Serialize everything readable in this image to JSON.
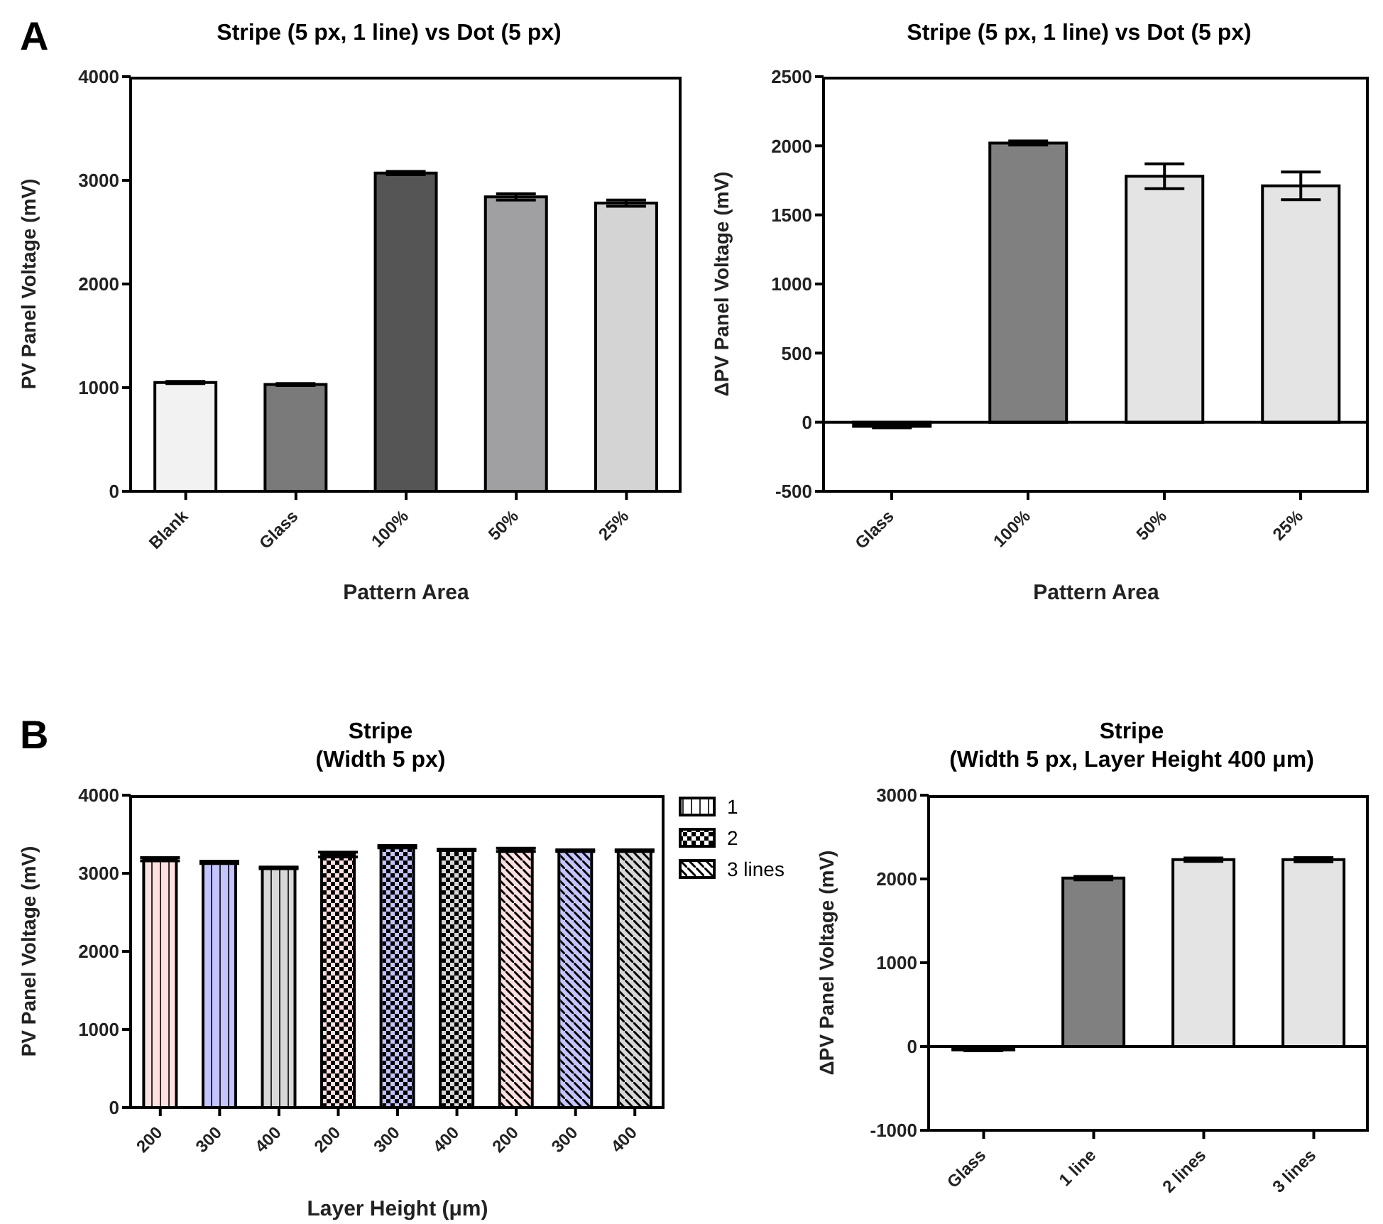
{
  "chart_data": [
    {
      "type": "bar",
      "title": "Stripe (5 px, 1 line) vs Dot (5 px)",
      "annotations": [
        "A"
      ],
      "xlabel": "Pattern Area",
      "ylabel": "PV Panel Voltage (mV)",
      "categories": [
        "Blank",
        "Glass",
        "100%",
        "50%",
        "25%"
      ],
      "values": [
        1050,
        1030,
        3070,
        2840,
        2780
      ],
      "errors": [
        10,
        10,
        15,
        30,
        30
      ],
      "colors": [
        "#f2f2f2",
        "#7a7a7a",
        "#555555",
        "#a0a0a2",
        "#d4d4d4"
      ],
      "ylim": [
        0,
        4000
      ],
      "yticks": [
        0,
        1000,
        2000,
        3000,
        4000
      ],
      "grid": false,
      "legend": false
    },
    {
      "type": "bar",
      "title": "Stripe (5 px, 1 line) vs Dot (5 px)",
      "xlabel": "Pattern Area",
      "ylabel": "ΔPV Panel Voltage (mV)",
      "categories": [
        "Glass",
        "100%",
        "50%",
        "25%"
      ],
      "values": [
        -30,
        2020,
        1780,
        1710
      ],
      "errors": [
        10,
        15,
        90,
        100
      ],
      "colors": [
        "#000000",
        "#808080",
        "#e4e4e4",
        "#e4e4e4"
      ],
      "ylim": [
        -500,
        2500
      ],
      "yticks": [
        -500,
        0,
        500,
        1000,
        1500,
        2000,
        2500
      ],
      "ref_lines": [
        {
          "axis": "y",
          "value": 0
        }
      ],
      "grid": false,
      "legend": false
    },
    {
      "type": "bar",
      "title": "Stripe",
      "subtitle": "(Width 5 px)",
      "annotations": [
        "B"
      ],
      "xlabel": "Layer Height (μm)",
      "ylabel": "PV Panel Voltage (mV)",
      "categories": [
        "200",
        "300",
        "400",
        "200",
        "300",
        "400",
        "200",
        "300",
        "400"
      ],
      "series": [
        {
          "name": "1",
          "color": "#ffffff",
          "colors": [
            "#ffe0e0",
            "#c4c4ff",
            "#d8d8d8",
            null,
            null,
            null,
            null,
            null,
            null
          ],
          "values": [
            3180,
            3140,
            3070,
            null,
            null,
            null,
            null,
            null,
            null
          ],
          "errors": [
            20,
            15,
            10,
            null,
            null,
            null,
            null,
            null,
            null
          ]
        },
        {
          "name": "2",
          "color": "#ffffff",
          "colors": [
            null,
            null,
            null,
            "#ffe0e0",
            "#c4c4ff",
            "#d8d8d8",
            null,
            null,
            null
          ],
          "values": [
            null,
            null,
            null,
            3240,
            3340,
            3300,
            null,
            null,
            null
          ],
          "errors": [
            null,
            null,
            null,
            30,
            15,
            10,
            null,
            null,
            null
          ]
        },
        {
          "name": "3 lines",
          "color": "#ffffff",
          "colors": [
            null,
            null,
            null,
            null,
            null,
            null,
            "#ffe0e0",
            "#c4c4ff",
            "#d8d8d8"
          ],
          "values": [
            null,
            null,
            null,
            null,
            null,
            null,
            3300,
            3290,
            3290
          ],
          "errors": [
            null,
            null,
            null,
            null,
            null,
            null,
            20,
            10,
            10
          ]
        }
      ],
      "ylim": [
        0,
        4000
      ],
      "yticks": [
        0,
        1000,
        2000,
        3000,
        4000
      ],
      "grid": false,
      "legend": "top right"
    },
    {
      "type": "bar",
      "title": "Stripe",
      "subtitle": "(Width 5 px, Layer Height 400 μm)",
      "ylabel": "ΔPV Panel Voltage (mV)",
      "categories": [
        "Glass",
        "1 line",
        "2 lines",
        "3 lines"
      ],
      "values": [
        -40,
        2010,
        2230,
        2230
      ],
      "errors": [
        10,
        20,
        20,
        25
      ],
      "colors": [
        "#000000",
        "#808080",
        "#e4e4e4",
        "#e4e4e4"
      ],
      "ylim": [
        -1000,
        3000
      ],
      "yticks": [
        -1000,
        0,
        1000,
        2000,
        3000
      ],
      "ref_lines": [
        {
          "axis": "y",
          "value": 0
        }
      ],
      "grid": false,
      "legend": false
    }
  ]
}
